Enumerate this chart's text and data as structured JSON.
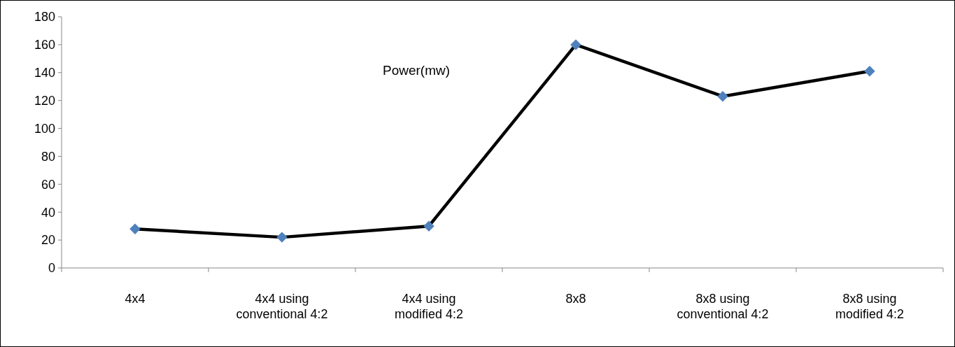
{
  "chart_data": {
    "type": "line",
    "title": "Power(mw)",
    "categories": [
      "4x4",
      "4x4 using conventional 4:2",
      "4x4 using modified 4:2",
      "8x8",
      "8x8 using conventional 4:2",
      "8x8 using modified 4:2"
    ],
    "series": [
      {
        "color": "#000000",
        "colors": [
          "#4f81bd",
          "#4f81bd",
          "#4f81bd",
          "#4f81bd",
          "#4f81bd",
          "#4f81bd"
        ],
        "values": [
          28,
          22,
          30,
          160,
          123,
          141
        ]
      }
    ],
    "ylim": [
      0,
      180
    ],
    "yticks": [
      0,
      20,
      40,
      60,
      80,
      100,
      120,
      140,
      160,
      180
    ],
    "grid": false,
    "marker": "diamond",
    "line_style": "solid"
  }
}
